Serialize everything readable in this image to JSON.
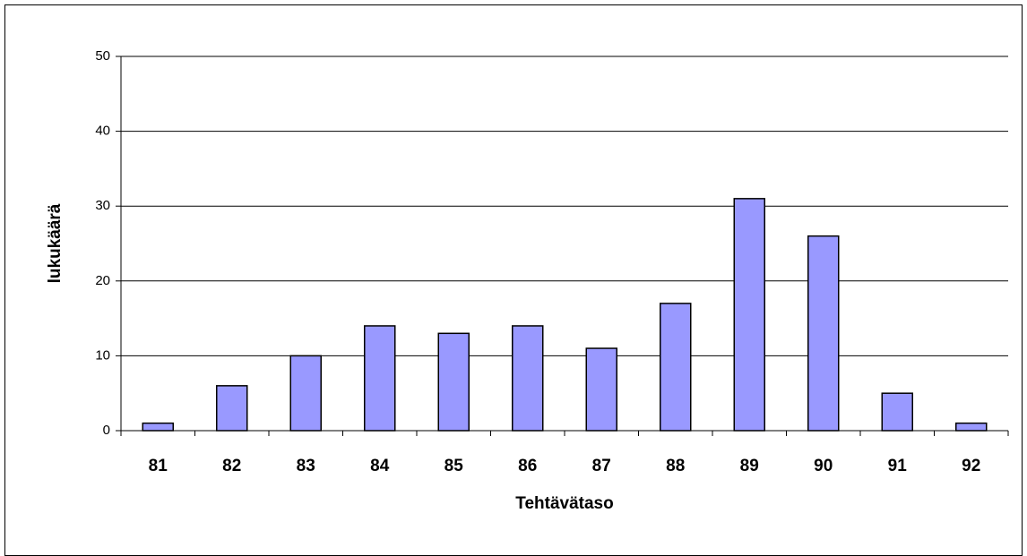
{
  "chart_data": {
    "type": "bar",
    "x_label": "Tehtävätaso",
    "y_label": "lukukäärä",
    "categories": [
      "81",
      "82",
      "83",
      "84",
      "85",
      "86",
      "87",
      "88",
      "89",
      "90",
      "91",
      "92"
    ],
    "values": [
      1,
      6,
      10,
      14,
      13,
      14,
      11,
      17,
      31,
      26,
      5,
      1
    ],
    "color": "#9999ff",
    "ylim": [
      0,
      50
    ],
    "yticks": [
      0,
      10,
      20,
      30,
      40,
      50
    ],
    "grid": true
  }
}
